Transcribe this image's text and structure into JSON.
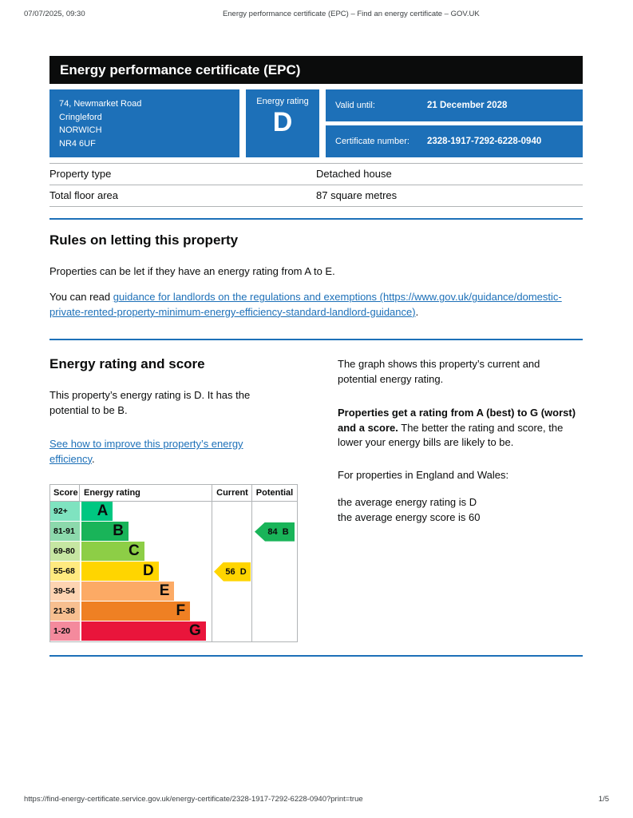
{
  "print_header": {
    "datetime": "07/07/2025, 09:30",
    "title": "Energy performance certificate (EPC) – Find an energy certificate – GOV.UK"
  },
  "banner": {
    "title": "Energy performance certificate (EPC)"
  },
  "summary_box": {
    "box_color": "#1d70b8",
    "address_lines": [
      "74, Newmarket Road",
      "Cringleford",
      "NORWICH",
      "NR4 6UF"
    ],
    "energy_rating_label": "Energy rating",
    "energy_rating_value": "D",
    "valid_until_label": "Valid until:",
    "valid_until_value": "21 December 2028",
    "certificate_number_label": "Certificate number:",
    "certificate_number_value": "2328-1917-7292-6228-0940"
  },
  "property_table": {
    "rows": [
      {
        "key": "Property type",
        "value": "Detached house"
      },
      {
        "key": "Total floor area",
        "value": "87 square metres"
      }
    ]
  },
  "rules_section": {
    "heading": "Rules on letting this property",
    "paragraph": "Properties can be let if they have an energy rating from A to E.",
    "link_prefix": "You can read ",
    "link_text": "guidance for landlords on the regulations and exemptions (https://www.gov.uk/guidance/domestic-private-rented-property-minimum-energy-efficiency-standard-landlord-guidance)",
    "link_suffix": "."
  },
  "rating_section": {
    "heading": "Energy rating and score",
    "paragraph": "This property’s energy rating is D. It has the potential to be B.",
    "improve_link_text": "See how to improve this property’s energy efficiency",
    "improve_link_suffix": "."
  },
  "right_column": {
    "para1": "The graph shows this property’s current and potential energy rating.",
    "para2_bold": "Properties get a rating from A (best) to G (worst) and a score.",
    "para2_rest": " The better the rating and score, the lower your energy bills are likely to be.",
    "para3": "For properties in England and Wales:",
    "avg_rating_line": "the average energy rating is D",
    "avg_score_line": "the average energy score is 60"
  },
  "chart_data": {
    "type": "bar",
    "subtype": "epc-energy-rating-scale",
    "column_headers": [
      "Score",
      "Energy rating",
      "Current",
      "Potential"
    ],
    "bands": [
      {
        "score_range": "92+",
        "letter": "A",
        "color": "#00c781",
        "score_bg": "#7fe3c0",
        "bar_pct": 24
      },
      {
        "score_range": "81-91",
        "letter": "B",
        "color": "#19b459",
        "score_bg": "#8cd9ac",
        "bar_pct": 36
      },
      {
        "score_range": "69-80",
        "letter": "C",
        "color": "#8dce46",
        "score_bg": "#c6e6a2",
        "bar_pct": 48
      },
      {
        "score_range": "55-68",
        "letter": "D",
        "color": "#ffd500",
        "score_bg": "#ffea7f",
        "bar_pct": 59
      },
      {
        "score_range": "39-54",
        "letter": "E",
        "color": "#fcaa65",
        "score_bg": "#fdd4b2",
        "bar_pct": 71
      },
      {
        "score_range": "21-38",
        "letter": "F",
        "color": "#ef8023",
        "score_bg": "#f7bf90",
        "bar_pct": 83
      },
      {
        "score_range": "1-20",
        "letter": "G",
        "color": "#e9153b",
        "score_bg": "#f48a9d",
        "bar_pct": 95
      }
    ],
    "current": {
      "score": 56,
      "letter": "D",
      "band_index": 3,
      "color": "#ffd500"
    },
    "potential": {
      "score": 84,
      "letter": "B",
      "band_index": 1,
      "color": "#19b459"
    }
  },
  "print_footer": {
    "url": "https://find-energy-certificate.service.gov.uk/energy-certificate/2328-1917-7292-6228-0940?print=true",
    "page": "1/5"
  }
}
